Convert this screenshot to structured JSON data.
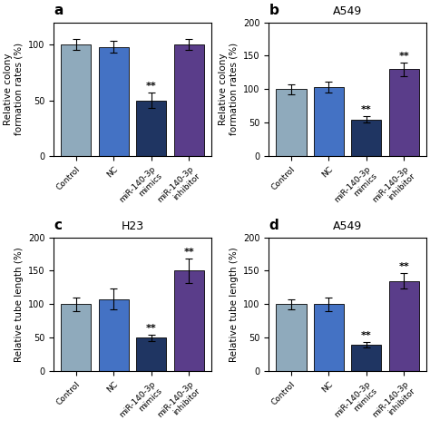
{
  "chart_data": [
    {
      "type": "bar",
      "panel_label": "a",
      "ylabel": "Relative colony\nformation rates (%)",
      "categories": [
        "Control",
        "NC",
        "miR-140-3p\nmimics",
        "miR-140-3p\ninhibitor"
      ],
      "values": [
        100,
        98,
        50,
        100
      ],
      "errors": [
        5,
        5,
        7,
        5
      ],
      "annotations": [
        null,
        null,
        "**",
        null
      ],
      "colors": [
        "#8faabc",
        "#4472c4",
        "#1f3562",
        "#5a3d8a"
      ],
      "ylim": [
        0,
        120
      ],
      "yticks": [
        0,
        50,
        100
      ]
    },
    {
      "type": "bar",
      "panel_label": "b",
      "title": "A549",
      "ylabel": "Relative colony\nformation rates (%)",
      "categories": [
        "Control",
        "NC",
        "miR-140-3p\nmimics",
        "miR-140-3p\ninhibitor"
      ],
      "values": [
        100,
        103,
        55,
        130
      ],
      "errors": [
        7,
        8,
        5,
        10
      ],
      "annotations": [
        null,
        null,
        "**",
        "**"
      ],
      "colors": [
        "#8faabc",
        "#4472c4",
        "#1f3562",
        "#5a3d8a"
      ],
      "ylim": [
        0,
        200
      ],
      "yticks": [
        0,
        50,
        100,
        150,
        200
      ]
    },
    {
      "type": "bar",
      "panel_label": "c",
      "title": "H23",
      "ylabel": "Relative tube length (%)",
      "categories": [
        "Control",
        "NC",
        "miR-140-3p\nmimics",
        "miR-140-3p\ninhibitor"
      ],
      "values": [
        100,
        108,
        50,
        150
      ],
      "errors": [
        10,
        15,
        5,
        18
      ],
      "annotations": [
        null,
        null,
        "**",
        "**"
      ],
      "colors": [
        "#8faabc",
        "#4472c4",
        "#1f3562",
        "#5a3d8a"
      ],
      "ylim": [
        0,
        200
      ],
      "yticks": [
        0,
        50,
        100,
        150,
        200
      ]
    },
    {
      "type": "bar",
      "panel_label": "d",
      "title": "A549",
      "ylabel": "Relative tube length (%)",
      "categories": [
        "Control",
        "NC",
        "miR-140-3p\nmimics",
        "miR-140-3p\ninhibitor"
      ],
      "values": [
        100,
        100,
        40,
        135
      ],
      "errors": [
        7,
        10,
        4,
        12
      ],
      "annotations": [
        null,
        null,
        "**",
        "**"
      ],
      "colors": [
        "#8faabc",
        "#4472c4",
        "#1f3562",
        "#5a3d8a"
      ],
      "ylim": [
        0,
        200
      ],
      "yticks": [
        0,
        50,
        100,
        150,
        200
      ]
    }
  ]
}
